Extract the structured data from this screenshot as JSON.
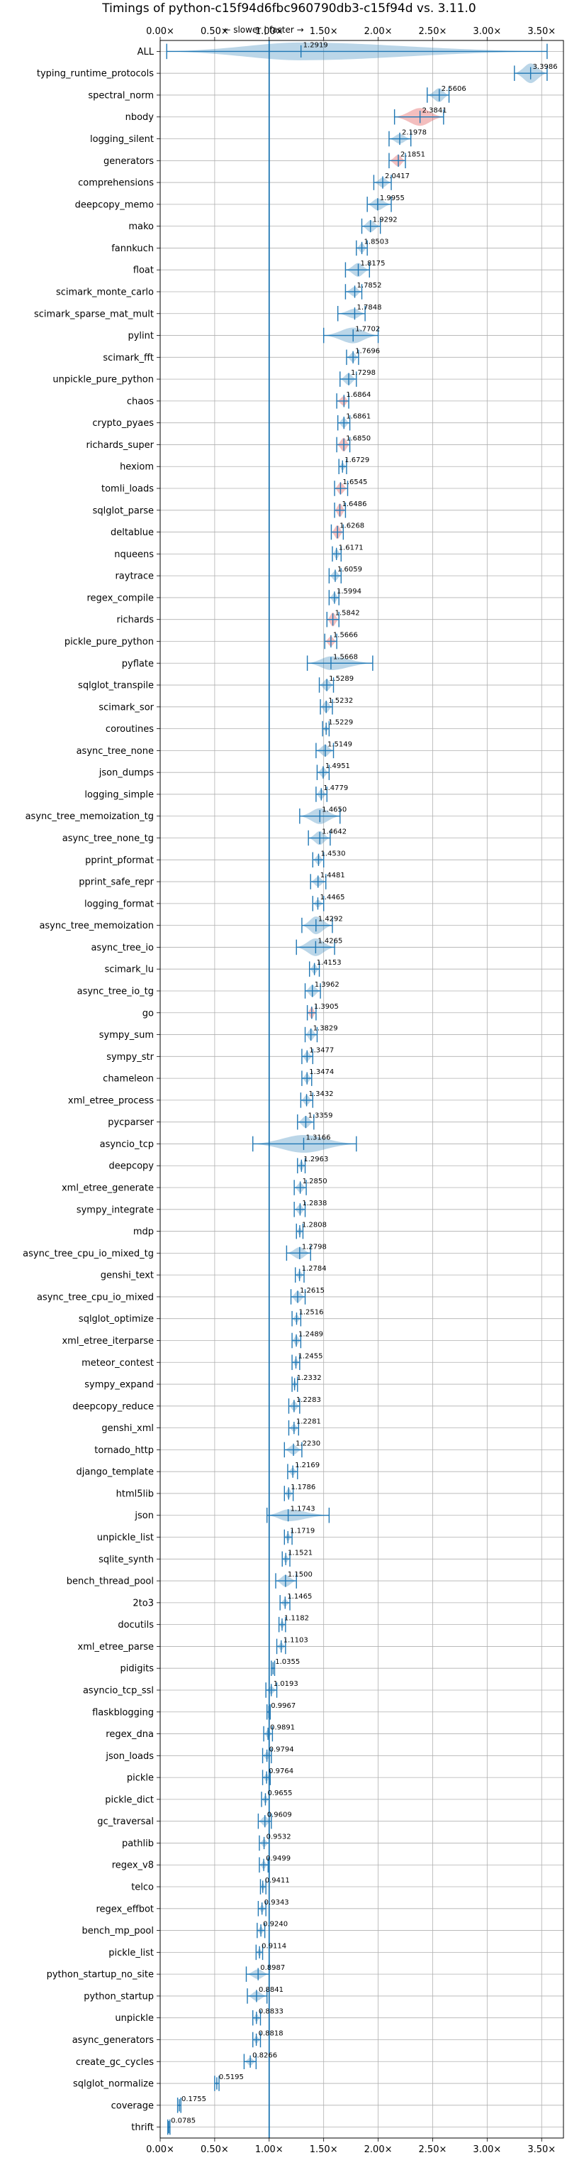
{
  "chart_data": {
    "type": "violin",
    "title": "Timings of python-c15f94d6fbc960790db3-c15f94d vs. 3.11.0",
    "annotation": "← slower | faster →",
    "xlabel": "",
    "ylabel": "",
    "xlim": [
      0,
      3.7
    ],
    "x_ticks": [
      0,
      0.5,
      1.0,
      1.5,
      2.0,
      2.5,
      3.0,
      3.5
    ],
    "x_tick_labels": [
      "0.00×",
      "0.50×",
      "1.00×",
      "1.50×",
      "2.00×",
      "2.50×",
      "3.00×",
      "3.50×"
    ],
    "reference_line": 1.0,
    "grid": true,
    "colors": {
      "faster": "#1f77b4",
      "slower": "#d62728",
      "line": "#1f77b4"
    },
    "categories": [
      "ALL",
      "typing_runtime_protocols",
      "spectral_norm",
      "nbody",
      "logging_silent",
      "generators",
      "comprehensions",
      "deepcopy_memo",
      "mako",
      "fannkuch",
      "float",
      "scimark_monte_carlo",
      "scimark_sparse_mat_mult",
      "pylint",
      "scimark_fft",
      "unpickle_pure_python",
      "chaos",
      "crypto_pyaes",
      "richards_super",
      "hexiom",
      "tomli_loads",
      "sqlglot_parse",
      "deltablue",
      "nqueens",
      "raytrace",
      "regex_compile",
      "richards",
      "pickle_pure_python",
      "pyflate",
      "sqlglot_transpile",
      "scimark_sor",
      "coroutines",
      "async_tree_none",
      "json_dumps",
      "logging_simple",
      "async_tree_memoization_tg",
      "async_tree_none_tg",
      "pprint_pformat",
      "pprint_safe_repr",
      "logging_format",
      "async_tree_memoization",
      "async_tree_io",
      "scimark_lu",
      "async_tree_io_tg",
      "go",
      "sympy_sum",
      "sympy_str",
      "chameleon",
      "xml_etree_process",
      "pycparser",
      "asyncio_tcp",
      "deepcopy",
      "xml_etree_generate",
      "sympy_integrate",
      "mdp",
      "async_tree_cpu_io_mixed_tg",
      "genshi_text",
      "async_tree_cpu_io_mixed",
      "sqlglot_optimize",
      "xml_etree_iterparse",
      "meteor_contest",
      "sympy_expand",
      "deepcopy_reduce",
      "genshi_xml",
      "tornado_http",
      "django_template",
      "html5lib",
      "json",
      "unpickle_list",
      "sqlite_synth",
      "bench_thread_pool",
      "2to3",
      "docutils",
      "xml_etree_parse",
      "pidigits",
      "asyncio_tcp_ssl",
      "flaskblogging",
      "regex_dna",
      "json_loads",
      "pickle",
      "pickle_dict",
      "gc_traversal",
      "pathlib",
      "regex_v8",
      "telco",
      "regex_effbot",
      "bench_mp_pool",
      "pickle_list",
      "python_startup_no_site",
      "python_startup",
      "unpickle",
      "async_generators",
      "create_gc_cycles",
      "sqlglot_normalize",
      "coverage",
      "thrift"
    ],
    "values": [
      1.2919,
      3.3986,
      2.5606,
      2.3841,
      2.1978,
      2.1851,
      2.0417,
      1.9955,
      1.9292,
      1.8503,
      1.8175,
      1.7852,
      1.7848,
      1.7702,
      1.7696,
      1.7298,
      1.6864,
      1.6861,
      1.685,
      1.6729,
      1.6545,
      1.6486,
      1.6268,
      1.6171,
      1.6059,
      1.5994,
      1.5842,
      1.5666,
      1.5668,
      1.5289,
      1.5232,
      1.5229,
      1.5149,
      1.4951,
      1.4779,
      1.465,
      1.4642,
      1.453,
      1.4481,
      1.4465,
      1.4292,
      1.4265,
      1.4153,
      1.3962,
      1.3905,
      1.3829,
      1.3477,
      1.3474,
      1.3432,
      1.3359,
      1.3166,
      1.2963,
      1.285,
      1.2838,
      1.2808,
      1.2798,
      1.2784,
      1.2615,
      1.2516,
      1.2489,
      1.2455,
      1.2332,
      1.2283,
      1.2281,
      1.223,
      1.2169,
      1.1786,
      1.1743,
      1.1719,
      1.1521,
      1.15,
      1.1465,
      1.1182,
      1.1103,
      1.0355,
      1.0193,
      0.9967,
      0.9891,
      0.9794,
      0.9764,
      0.9655,
      0.9609,
      0.9532,
      0.9499,
      0.9411,
      0.9343,
      0.924,
      0.9114,
      0.8987,
      0.8841,
      0.8833,
      0.8818,
      0.8266,
      0.5195,
      0.1755,
      0.0785
    ],
    "value_labels": [
      "1.2919",
      "3.3986",
      "2.5606",
      "2.3841",
      "2.1978",
      "2.1851",
      "2.0417",
      "1.9955",
      "1.9292",
      "1.8503",
      "1.8175",
      "1.7852",
      "1.7848",
      "1.7702",
      "1.7696",
      "1.7298",
      "1.6864",
      "1.6861",
      "1.6850",
      "1.6729",
      "1.6545",
      "1.6486",
      "1.6268",
      "1.6171",
      "1.6059",
      "1.5994",
      "1.5842",
      "1.5666",
      "1.5668",
      "1.5289",
      "1.5232",
      "1.5229",
      "1.5149",
      "1.4951",
      "1.4779",
      "1.4650",
      "1.4642",
      "1.4530",
      "1.4481",
      "1.4465",
      "1.4292",
      "1.4265",
      "1.4153",
      "1.3962",
      "1.3905",
      "1.3829",
      "1.3477",
      "1.3474",
      "1.3432",
      "1.3359",
      "1.3166",
      "1.2963",
      "1.2850",
      "1.2838",
      "1.2808",
      "1.2798",
      "1.2784",
      "1.2615",
      "1.2516",
      "1.2489",
      "1.2455",
      "1.2332",
      "1.2283",
      "1.2281",
      "1.2230",
      "1.2169",
      "1.1786",
      "1.1743",
      "1.1719",
      "1.1521",
      "1.1500",
      "1.1465",
      "1.1182",
      "1.1103",
      "1.0355",
      "1.0193",
      "0.9967",
      "0.9891",
      "0.9794",
      "0.9764",
      "0.9655",
      "0.9609",
      "0.9532",
      "0.9499",
      "0.9411",
      "0.9343",
      "0.9240",
      "0.9114",
      "0.8987",
      "0.8841",
      "0.8833",
      "0.8818",
      "0.8266",
      "0.5195",
      "0.1755",
      "0.0785"
    ],
    "ranges": [
      [
        0.06,
        3.55
      ],
      [
        3.25,
        3.55
      ],
      [
        2.45,
        2.65
      ],
      [
        2.15,
        2.6
      ],
      [
        2.1,
        2.3
      ],
      [
        2.1,
        2.25
      ],
      [
        1.96,
        2.12
      ],
      [
        1.9,
        2.12
      ],
      [
        1.85,
        2.02
      ],
      [
        1.8,
        1.9
      ],
      [
        1.7,
        1.92
      ],
      [
        1.7,
        1.85
      ],
      [
        1.63,
        1.88
      ],
      [
        1.5,
        2.0
      ],
      [
        1.71,
        1.82
      ],
      [
        1.65,
        1.8
      ],
      [
        1.62,
        1.73
      ],
      [
        1.63,
        1.74
      ],
      [
        1.62,
        1.74
      ],
      [
        1.64,
        1.71
      ],
      [
        1.6,
        1.72
      ],
      [
        1.6,
        1.7
      ],
      [
        1.57,
        1.68
      ],
      [
        1.58,
        1.66
      ],
      [
        1.55,
        1.66
      ],
      [
        1.55,
        1.64
      ],
      [
        1.53,
        1.64
      ],
      [
        1.51,
        1.62
      ],
      [
        1.35,
        1.95
      ],
      [
        1.46,
        1.59
      ],
      [
        1.47,
        1.58
      ],
      [
        1.49,
        1.55
      ],
      [
        1.43,
        1.59
      ],
      [
        1.44,
        1.55
      ],
      [
        1.43,
        1.53
      ],
      [
        1.28,
        1.65
      ],
      [
        1.36,
        1.56
      ],
      [
        1.4,
        1.5
      ],
      [
        1.38,
        1.52
      ],
      [
        1.4,
        1.5
      ],
      [
        1.3,
        1.58
      ],
      [
        1.25,
        1.6
      ],
      [
        1.37,
        1.46
      ],
      [
        1.33,
        1.47
      ],
      [
        1.35,
        1.43
      ],
      [
        1.33,
        1.44
      ],
      [
        1.3,
        1.4
      ],
      [
        1.3,
        1.39
      ],
      [
        1.29,
        1.4
      ],
      [
        1.26,
        1.41
      ],
      [
        0.85,
        1.8
      ],
      [
        1.26,
        1.33
      ],
      [
        1.23,
        1.34
      ],
      [
        1.23,
        1.33
      ],
      [
        1.25,
        1.31
      ],
      [
        1.16,
        1.38
      ],
      [
        1.24,
        1.32
      ],
      [
        1.2,
        1.33
      ],
      [
        1.21,
        1.29
      ],
      [
        1.21,
        1.29
      ],
      [
        1.21,
        1.28
      ],
      [
        1.21,
        1.26
      ],
      [
        1.18,
        1.28
      ],
      [
        1.18,
        1.27
      ],
      [
        1.14,
        1.3
      ],
      [
        1.17,
        1.26
      ],
      [
        1.14,
        1.22
      ],
      [
        0.98,
        1.55
      ],
      [
        1.14,
        1.21
      ],
      [
        1.12,
        1.19
      ],
      [
        1.06,
        1.25
      ],
      [
        1.1,
        1.19
      ],
      [
        1.09,
        1.15
      ],
      [
        1.07,
        1.15
      ],
      [
        1.02,
        1.05
      ],
      [
        0.97,
        1.07
      ],
      [
        0.98,
        1.01
      ],
      [
        0.95,
        1.03
      ],
      [
        0.94,
        1.02
      ],
      [
        0.94,
        1.01
      ],
      [
        0.93,
        1.0
      ],
      [
        0.9,
        1.02
      ],
      [
        0.91,
        1.0
      ],
      [
        0.91,
        0.99
      ],
      [
        0.92,
        0.97
      ],
      [
        0.9,
        0.97
      ],
      [
        0.89,
        0.96
      ],
      [
        0.88,
        0.94
      ],
      [
        0.79,
        1.0
      ],
      [
        0.8,
        0.98
      ],
      [
        0.85,
        0.92
      ],
      [
        0.85,
        0.92
      ],
      [
        0.77,
        0.88
      ],
      [
        0.5,
        0.54
      ],
      [
        0.16,
        0.19
      ],
      [
        0.07,
        0.09
      ]
    ],
    "widths": [
      0.9,
      1.0,
      0.7,
      0.9,
      0.5,
      0.6,
      0.5,
      0.6,
      0.6,
      0.5,
      0.7,
      0.5,
      0.5,
      0.8,
      0.5,
      0.6,
      0.5,
      0.5,
      0.7,
      0.4,
      0.6,
      0.7,
      0.7,
      0.5,
      0.5,
      0.5,
      0.7,
      0.5,
      0.7,
      0.6,
      0.6,
      0.3,
      0.6,
      0.5,
      0.5,
      0.8,
      0.7,
      0.5,
      0.5,
      0.4,
      0.9,
      0.9,
      0.5,
      0.6,
      0.6,
      0.6,
      0.5,
      0.5,
      0.5,
      0.6,
      0.9,
      0.5,
      0.5,
      0.5,
      0.4,
      0.6,
      0.4,
      0.6,
      0.4,
      0.5,
      0.4,
      0.4,
      0.5,
      0.4,
      0.5,
      0.4,
      0.5,
      0.6,
      0.4,
      0.4,
      0.6,
      0.4,
      0.4,
      0.4,
      0.2,
      0.4,
      0.2,
      0.4,
      0.4,
      0.4,
      0.4,
      0.5,
      0.4,
      0.4,
      0.4,
      0.4,
      0.4,
      0.4,
      0.5,
      0.5,
      0.4,
      0.4,
      0.4,
      0.2,
      0.15,
      0.15
    ],
    "slower_highlight": [
      "nbody",
      "generators",
      "chaos",
      "richards_super",
      "tomli_loads",
      "sqlglot_parse",
      "deltablue",
      "richards",
      "pickle_pure_python",
      "go"
    ]
  }
}
